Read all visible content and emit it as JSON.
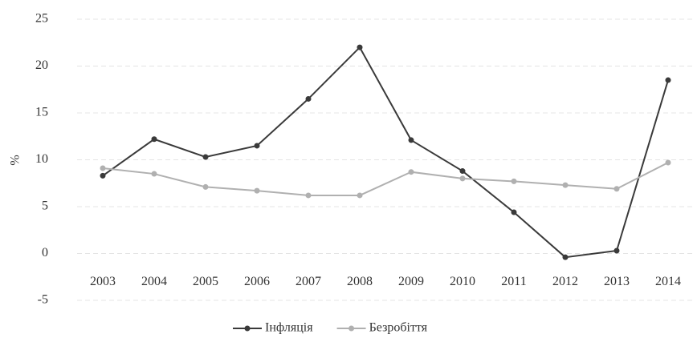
{
  "chart_data": {
    "type": "line",
    "y_label": "%",
    "categories": [
      "2003",
      "2004",
      "2005",
      "2006",
      "2007",
      "2008",
      "2009",
      "2010",
      "2011",
      "2012",
      "2013",
      "2014"
    ],
    "series": [
      {
        "name": "Інфляція",
        "color": "#3a3a3a",
        "values": [
          8.3,
          12.2,
          10.3,
          11.5,
          16.5,
          22.0,
          12.1,
          8.8,
          4.4,
          -0.4,
          0.3,
          18.5
        ]
      },
      {
        "name": "Безробіття",
        "color": "#b0b0b0",
        "values": [
          9.1,
          8.5,
          7.1,
          6.7,
          6.2,
          6.2,
          8.7,
          8.0,
          7.7,
          7.3,
          6.9,
          9.7
        ]
      }
    ],
    "ylim": [
      -5,
      25
    ],
    "yticks": [
      -5,
      0,
      5,
      10,
      15,
      20,
      25
    ],
    "grid": true,
    "legend": "bottom"
  }
}
